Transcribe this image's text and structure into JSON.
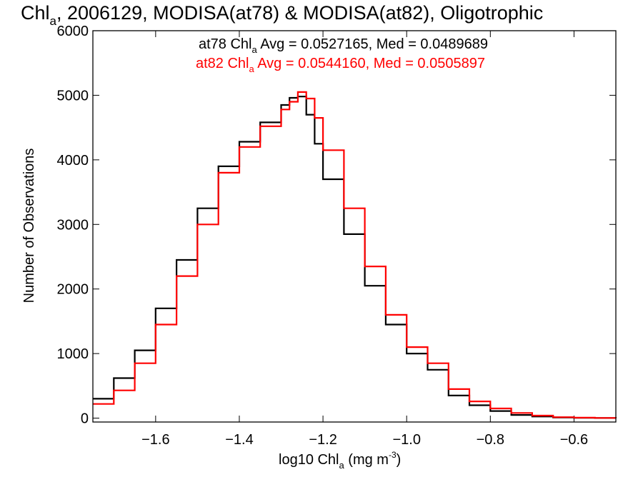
{
  "chart_data": {
    "type": "line",
    "title": {
      "prefix": "Chl",
      "sub": "a",
      "rest": ", 2006129, MODISA(at78) & MODISA(at82), Oligotrophic"
    },
    "xlabel": {
      "prefix": "log10 Chl",
      "sub": "a",
      "mid": " (mg m",
      "sup": "-3",
      "end": ")"
    },
    "ylabel": "Number of Observations",
    "xlim": [
      -1.75,
      -0.5
    ],
    "ylim": [
      -60,
      6000
    ],
    "xticks": [
      -1.6,
      -1.4,
      -1.2,
      -1.0,
      -0.8,
      -0.6
    ],
    "xtick_labels": [
      "−1.6",
      "−1.4",
      "−1.2",
      "−1.0",
      "−0.8",
      "−0.6"
    ],
    "yticks": [
      0,
      1000,
      2000,
      3000,
      4000,
      5000,
      6000
    ],
    "ytick_labels": [
      "0",
      "1000",
      "2000",
      "3000",
      "4000",
      "5000",
      "6000"
    ],
    "annotations": [
      {
        "prefix": "at78 Chl",
        "sub": "a",
        "rest": " Avg = 0.0527165, Med = 0.0489689",
        "color": "#000000"
      },
      {
        "prefix": "at82 Chl",
        "sub": "a",
        "rest": " Avg = 0.0544160, Med = 0.0505897",
        "color": "#ff0000"
      }
    ],
    "series": [
      {
        "color": "#000000",
        "x": [
          -1.75,
          -1.7,
          -1.65,
          -1.6,
          -1.55,
          -1.5,
          -1.45,
          -1.4,
          -1.35,
          -1.3,
          -1.28,
          -1.26,
          -1.24,
          -1.22,
          -1.2,
          -1.15,
          -1.1,
          -1.05,
          -1.0,
          -0.95,
          -0.9,
          -0.85,
          -0.8,
          -0.75,
          -0.7,
          -0.65,
          -0.6,
          -0.55,
          -0.5
        ],
        "y": [
          300,
          620,
          1050,
          1700,
          2450,
          3250,
          3900,
          4280,
          4580,
          4850,
          4960,
          4980,
          4700,
          4250,
          3700,
          2850,
          2050,
          1450,
          1000,
          750,
          350,
          200,
          110,
          50,
          25,
          10,
          5,
          2,
          0
        ]
      },
      {
        "color": "#ff0000",
        "x": [
          -1.75,
          -1.7,
          -1.65,
          -1.6,
          -1.55,
          -1.5,
          -1.45,
          -1.4,
          -1.35,
          -1.3,
          -1.28,
          -1.26,
          -1.24,
          -1.22,
          -1.2,
          -1.15,
          -1.1,
          -1.05,
          -1.0,
          -0.95,
          -0.9,
          -0.85,
          -0.8,
          -0.75,
          -0.7,
          -0.65,
          -0.6,
          -0.55,
          -0.5
        ],
        "y": [
          220,
          430,
          850,
          1450,
          2200,
          3000,
          3800,
          4200,
          4520,
          4780,
          4900,
          5050,
          4950,
          4650,
          4150,
          3250,
          2350,
          1600,
          1100,
          850,
          450,
          260,
          150,
          80,
          40,
          15,
          8,
          3,
          0
        ]
      }
    ]
  }
}
